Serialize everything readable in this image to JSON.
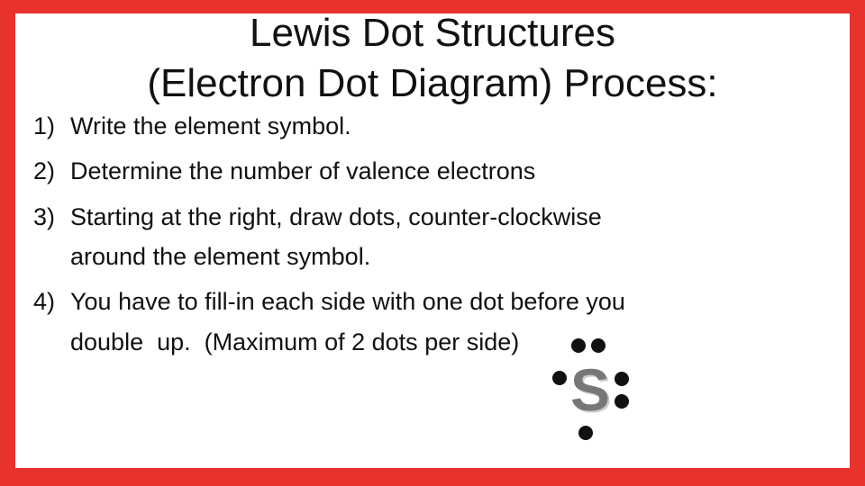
{
  "title": {
    "lines": [
      "Lewis Dot Structures",
      "(Electron Dot Diagram) Process:"
    ]
  },
  "steps": [
    {
      "number": "1)",
      "lines": [
        "Write the element symbol."
      ]
    },
    {
      "number": "2)",
      "lines": [
        "Determine the number of valence electrons"
      ]
    },
    {
      "number": "3)",
      "lines": [
        "Starting at the right, draw dots, counter-clockwise",
        "around the element symbol."
      ]
    },
    {
      "number": "4)",
      "lines": [
        "You have to fill-in each side with one dot before you",
        "double  up.  (Maximum of 2 dots per side)"
      ]
    }
  ],
  "example": {
    "symbol": "S"
  }
}
